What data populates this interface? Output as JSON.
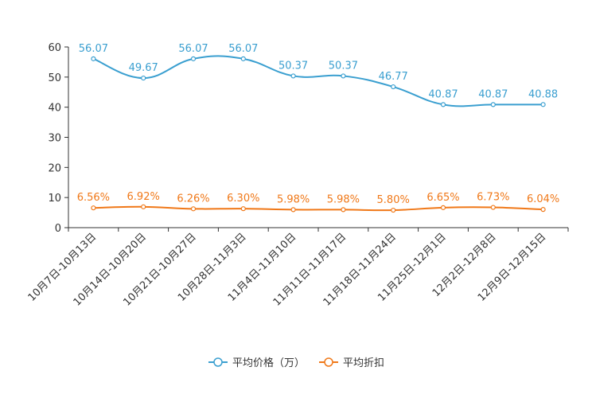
{
  "chart_data": {
    "type": "line",
    "title": "",
    "xlabel": "",
    "ylabel": "",
    "ylim": [
      0,
      60
    ],
    "yticks": [
      0,
      10,
      20,
      30,
      40,
      50,
      60
    ],
    "grid": false,
    "legend_position": "bottom",
    "categories": [
      "10月7日-10月13日",
      "10月14日-10月20日",
      "10月21日-10月27日",
      "10月28日-11月3日",
      "11月4日-11月10日",
      "11月11日-11月17日",
      "11月18日-11月24日",
      "11月25日-12月1日",
      "12月2日-12月8日",
      "12月9日-12月15日"
    ],
    "series": [
      {
        "name": "平均价格（万）",
        "color": "#3a9fd0",
        "values": [
          56.07,
          49.67,
          56.07,
          56.07,
          50.37,
          50.37,
          46.77,
          40.87,
          40.87,
          40.88
        ],
        "labels": [
          "56.07",
          "49.67",
          "56.07",
          "56.07",
          "50.37",
          "50.37",
          "46.77",
          "40.87",
          "40.87",
          "40.88"
        ]
      },
      {
        "name": "平均折扣",
        "color": "#f07818",
        "values": [
          6.56,
          6.92,
          6.26,
          6.3,
          5.98,
          5.98,
          5.8,
          6.65,
          6.73,
          6.04
        ],
        "labels": [
          "6.56%",
          "6.92%",
          "6.26%",
          "6.30%",
          "5.98%",
          "5.98%",
          "5.80%",
          "6.65%",
          "6.73%",
          "6.04%"
        ]
      }
    ]
  }
}
